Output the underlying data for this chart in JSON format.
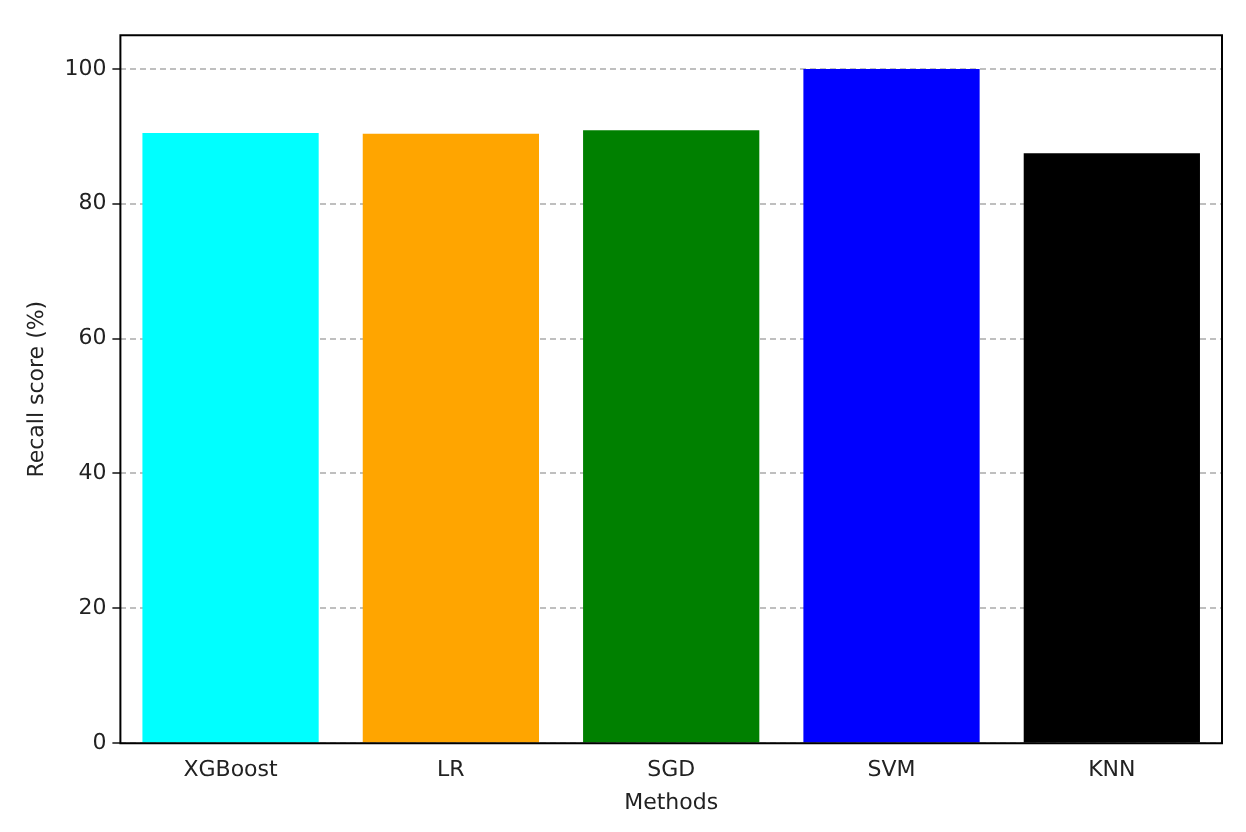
{
  "chart_data": {
    "type": "bar",
    "xlabel": "Methods",
    "ylabel": "Recall score (%)",
    "categories": [
      "XGBoost",
      "LR",
      "SGD",
      "SVM",
      "KNN"
    ],
    "values": [
      90.5,
      90.4,
      90.9,
      100,
      87.5
    ],
    "colors": [
      "#00ffff",
      "#ffa500",
      "#008000",
      "#0000ff",
      "#000000"
    ],
    "ylim": [
      0,
      105
    ],
    "yticks": [
      0,
      20,
      40,
      60,
      80,
      100
    ],
    "grid": "y",
    "legend": false
  }
}
